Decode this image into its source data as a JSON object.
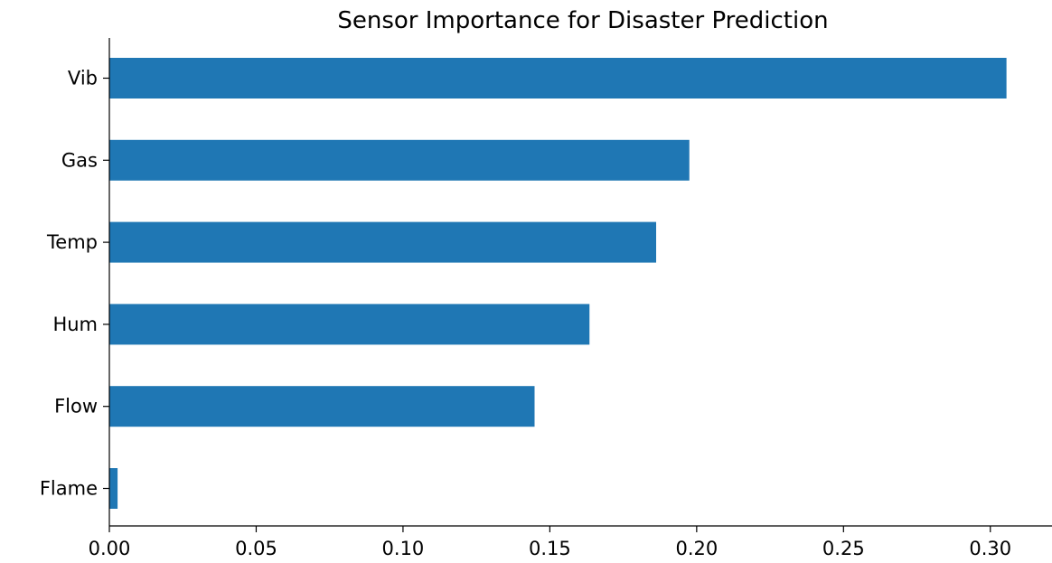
{
  "chart_data": {
    "type": "bar",
    "orientation": "horizontal",
    "title": "Sensor Importance for Disaster Prediction",
    "xlabel": "",
    "ylabel": "",
    "categories": [
      "Vib",
      "Gas",
      "Temp",
      "Hum",
      "Flow",
      "Flame"
    ],
    "values": [
      0.3055,
      0.1975,
      0.1862,
      0.1635,
      0.1448,
      0.0028
    ],
    "xlim": [
      0.0,
      0.321
    ],
    "xticks": [
      0.0,
      0.05,
      0.1,
      0.15,
      0.2,
      0.25,
      0.3
    ],
    "xtick_labels": [
      "0.00",
      "0.05",
      "0.10",
      "0.15",
      "0.20",
      "0.25",
      "0.30"
    ],
    "grid": false,
    "legend": "none",
    "bar_color": "#1f77b4"
  }
}
